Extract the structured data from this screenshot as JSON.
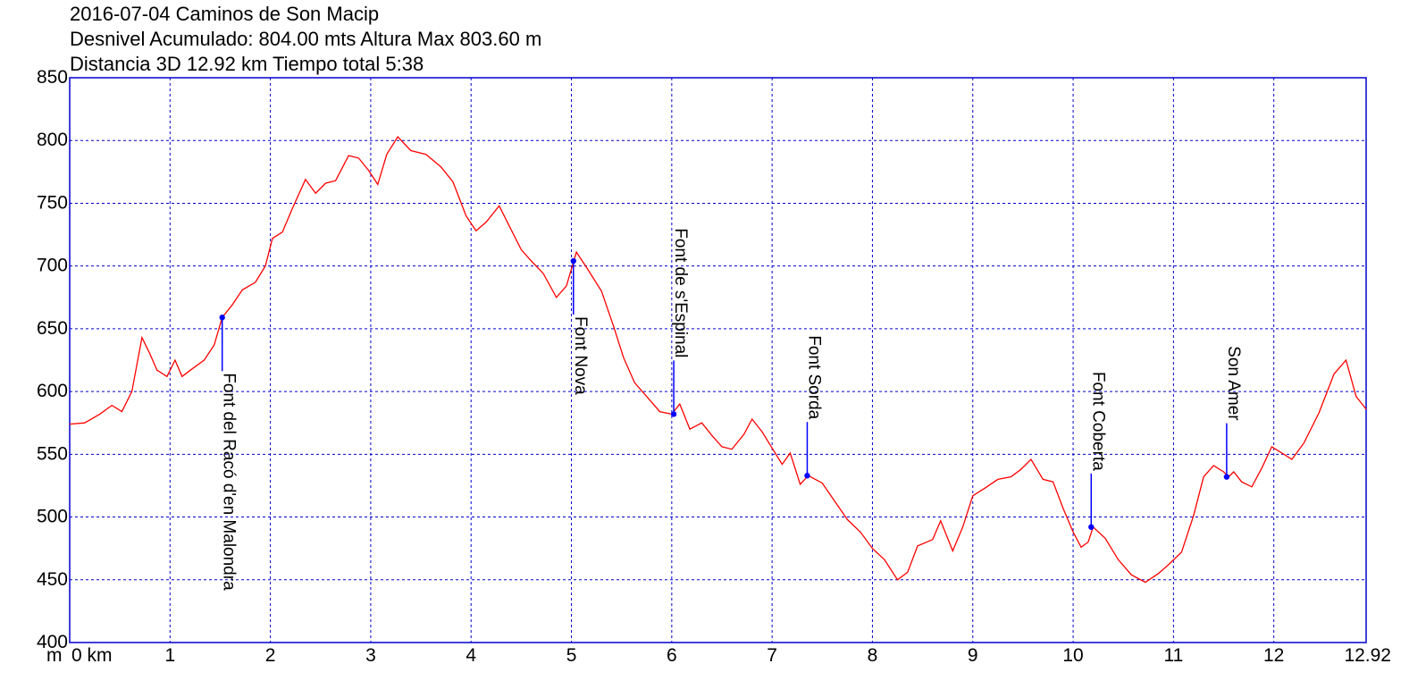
{
  "chart_data": {
    "type": "line",
    "title": [
      "2016-07-04 Caminos de Son Macip",
      "Desnivel Acumulado: 804.00 mts  Altura Max 803.60 m",
      "Distancia 3D 12.92 km  Tiempo total 5:38"
    ],
    "y_unit": "m",
    "x_unit": "km",
    "xlim": [
      0,
      12.92
    ],
    "ylim": [
      400,
      850
    ],
    "x_ticks": [
      {
        "v": 0,
        "label": "0 km"
      },
      {
        "v": 1,
        "label": "1"
      },
      {
        "v": 2,
        "label": "2"
      },
      {
        "v": 3,
        "label": "3"
      },
      {
        "v": 4,
        "label": "4"
      },
      {
        "v": 5,
        "label": "5"
      },
      {
        "v": 6,
        "label": "6"
      },
      {
        "v": 7,
        "label": "7"
      },
      {
        "v": 8,
        "label": "8"
      },
      {
        "v": 9,
        "label": "9"
      },
      {
        "v": 10,
        "label": "10"
      },
      {
        "v": 11,
        "label": "11"
      },
      {
        "v": 12,
        "label": "12"
      },
      {
        "v": 12.92,
        "label": "12.92"
      }
    ],
    "y_ticks": [
      {
        "v": 400,
        "label": "400"
      },
      {
        "v": 450,
        "label": "450"
      },
      {
        "v": 500,
        "label": "500"
      },
      {
        "v": 550,
        "label": "550"
      },
      {
        "v": 600,
        "label": "600"
      },
      {
        "v": 650,
        "label": "650"
      },
      {
        "v": 700,
        "label": "700"
      },
      {
        "v": 750,
        "label": "750"
      },
      {
        "v": 800,
        "label": "800"
      },
      {
        "v": 850,
        "label": "850"
      }
    ],
    "grid": true,
    "colors": {
      "profile": "#ff0000",
      "grid": "#0000cc",
      "waypoint": "#0000ff"
    },
    "profile": [
      [
        0.0,
        574
      ],
      [
        0.15,
        575
      ],
      [
        0.3,
        582
      ],
      [
        0.42,
        589
      ],
      [
        0.52,
        584
      ],
      [
        0.62,
        600
      ],
      [
        0.72,
        643
      ],
      [
        0.8,
        630
      ],
      [
        0.87,
        617
      ],
      [
        0.97,
        612
      ],
      [
        1.05,
        625
      ],
      [
        1.12,
        612
      ],
      [
        1.22,
        618
      ],
      [
        1.34,
        625
      ],
      [
        1.44,
        637
      ],
      [
        1.52,
        659
      ],
      [
        1.62,
        669
      ],
      [
        1.72,
        681
      ],
      [
        1.85,
        687
      ],
      [
        1.95,
        700
      ],
      [
        2.02,
        722
      ],
      [
        2.12,
        727
      ],
      [
        2.22,
        746
      ],
      [
        2.35,
        769
      ],
      [
        2.45,
        758
      ],
      [
        2.55,
        766
      ],
      [
        2.65,
        768
      ],
      [
        2.78,
        788
      ],
      [
        2.88,
        786
      ],
      [
        2.98,
        776
      ],
      [
        3.07,
        765
      ],
      [
        3.16,
        789
      ],
      [
        3.27,
        803
      ],
      [
        3.4,
        792
      ],
      [
        3.55,
        789
      ],
      [
        3.7,
        779
      ],
      [
        3.82,
        767
      ],
      [
        3.95,
        740
      ],
      [
        4.05,
        728
      ],
      [
        4.15,
        735
      ],
      [
        4.28,
        748
      ],
      [
        4.38,
        732
      ],
      [
        4.5,
        713
      ],
      [
        4.6,
        704
      ],
      [
        4.72,
        694
      ],
      [
        4.85,
        675
      ],
      [
        4.95,
        684
      ],
      [
        5.05,
        711
      ],
      [
        5.15,
        699
      ],
      [
        5.3,
        680
      ],
      [
        5.42,
        652
      ],
      [
        5.52,
        627
      ],
      [
        5.63,
        607
      ],
      [
        5.75,
        596
      ],
      [
        5.88,
        584
      ],
      [
        6.0,
        582
      ],
      [
        6.08,
        590
      ],
      [
        6.18,
        570
      ],
      [
        6.3,
        575
      ],
      [
        6.4,
        565
      ],
      [
        6.5,
        556
      ],
      [
        6.6,
        554
      ],
      [
        6.72,
        566
      ],
      [
        6.8,
        578
      ],
      [
        6.9,
        568
      ],
      [
        7.0,
        555
      ],
      [
        7.1,
        542
      ],
      [
        7.18,
        551
      ],
      [
        7.28,
        526
      ],
      [
        7.36,
        533
      ],
      [
        7.5,
        527
      ],
      [
        7.62,
        513
      ],
      [
        7.75,
        498
      ],
      [
        7.88,
        488
      ],
      [
        8.0,
        475
      ],
      [
        8.12,
        466
      ],
      [
        8.25,
        450
      ],
      [
        8.35,
        456
      ],
      [
        8.45,
        477
      ],
      [
        8.6,
        482
      ],
      [
        8.68,
        497
      ],
      [
        8.8,
        473
      ],
      [
        8.9,
        492
      ],
      [
        9.0,
        517
      ],
      [
        9.12,
        523
      ],
      [
        9.25,
        530
      ],
      [
        9.38,
        532
      ],
      [
        9.48,
        538
      ],
      [
        9.58,
        546
      ],
      [
        9.7,
        530
      ],
      [
        9.8,
        528
      ],
      [
        9.9,
        507
      ],
      [
        10.0,
        488
      ],
      [
        10.08,
        476
      ],
      [
        10.15,
        480
      ],
      [
        10.2,
        492
      ],
      [
        10.32,
        483
      ],
      [
        10.45,
        466
      ],
      [
        10.58,
        454
      ],
      [
        10.72,
        448
      ],
      [
        10.85,
        455
      ],
      [
        10.95,
        462
      ],
      [
        11.08,
        472
      ],
      [
        11.2,
        501
      ],
      [
        11.3,
        532
      ],
      [
        11.4,
        541
      ],
      [
        11.5,
        536
      ],
      [
        11.55,
        532
      ],
      [
        11.6,
        536
      ],
      [
        11.68,
        528
      ],
      [
        11.78,
        524
      ],
      [
        11.88,
        539
      ],
      [
        11.98,
        556
      ],
      [
        12.1,
        550
      ],
      [
        12.18,
        546
      ],
      [
        12.3,
        559
      ],
      [
        12.45,
        583
      ],
      [
        12.6,
        614
      ],
      [
        12.72,
        625
      ],
      [
        12.82,
        596
      ],
      [
        12.92,
        586
      ]
    ],
    "waypoints": [
      {
        "name": "Font del Racó d'en Malondra",
        "x": 1.52,
        "y": 659,
        "label_side": "below"
      },
      {
        "name": "Font Nova",
        "x": 5.02,
        "y": 704,
        "label_side": "below"
      },
      {
        "name": "Font de s'Espinal",
        "x": 6.02,
        "y": 582,
        "label_side": "above"
      },
      {
        "name": "Font Sorda",
        "x": 7.35,
        "y": 533,
        "label_side": "above"
      },
      {
        "name": "Font Coberta",
        "x": 10.18,
        "y": 492,
        "label_side": "above"
      },
      {
        "name": "Son Amer",
        "x": 11.53,
        "y": 532,
        "label_side": "above"
      }
    ]
  }
}
